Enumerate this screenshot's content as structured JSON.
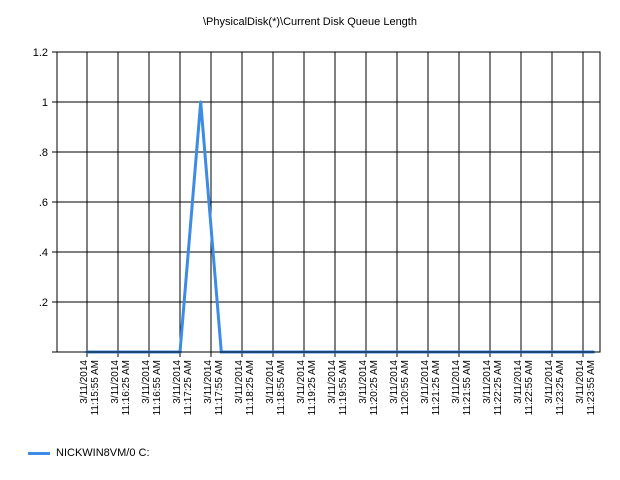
{
  "chart_data": {
    "type": "line",
    "title": "\\PhysicalDisk(*)\\Current Disk Queue Length",
    "xlabel": "",
    "ylabel": "",
    "ylim": [
      0,
      1.2
    ],
    "y_ticks": [
      {
        "value": 0,
        "label": ""
      },
      {
        "value": 0.2,
        "label": ".2"
      },
      {
        "value": 0.4,
        "label": ".4"
      },
      {
        "value": 0.6,
        "label": ".6"
      },
      {
        "value": 0.8,
        "label": ".8"
      },
      {
        "value": 1.0,
        "label": "1"
      },
      {
        "value": 1.2,
        "label": "1.2"
      }
    ],
    "x_ticks": [
      {
        "date": "3/11/2014",
        "time": "11:15:55 AM"
      },
      {
        "date": "3/11/2014",
        "time": "11:16:25 AM"
      },
      {
        "date": "3/11/2014",
        "time": "11:16:55 AM"
      },
      {
        "date": "3/11/2014",
        "time": "11:17:25 AM"
      },
      {
        "date": "3/11/2014",
        "time": "11:17:55 AM"
      },
      {
        "date": "3/11/2014",
        "time": "11:18:25 AM"
      },
      {
        "date": "3/11/2014",
        "time": "11:18:55 AM"
      },
      {
        "date": "3/11/2014",
        "time": "11:19:25 AM"
      },
      {
        "date": "3/11/2014",
        "time": "11:19:55 AM"
      },
      {
        "date": "3/11/2014",
        "time": "11:20:25 AM"
      },
      {
        "date": "3/11/2014",
        "time": "11:20:55 AM"
      },
      {
        "date": "3/11/2014",
        "time": "11:21:25 AM"
      },
      {
        "date": "3/11/2014",
        "time": "11:21:55 AM"
      },
      {
        "date": "3/11/2014",
        "time": "11:22:25 AM"
      },
      {
        "date": "3/11/2014",
        "time": "11:22:55 AM"
      },
      {
        "date": "3/11/2014",
        "time": "11:23:25 AM"
      },
      {
        "date": "3/11/2014",
        "time": "11:23:55 AM"
      }
    ],
    "x_range_seconds": [
      -20,
      495
    ],
    "grid": true,
    "legend_position": "bottom-left",
    "series": [
      {
        "name": "NICKWIN8VM/0 C:",
        "color": "#3c8ce6",
        "points": [
          {
            "t": "11:15:45 AM",
            "s": 0,
            "y": 0
          },
          {
            "t": "11:17:15 AM",
            "s": 90,
            "y": 0
          },
          {
            "t": "11:17:35 AM",
            "s": 110,
            "y": 1
          },
          {
            "t": "11:17:55 AM",
            "s": 130,
            "y": 0
          },
          {
            "t": "11:23:55 AM",
            "s": 490,
            "y": 0
          }
        ]
      }
    ]
  }
}
